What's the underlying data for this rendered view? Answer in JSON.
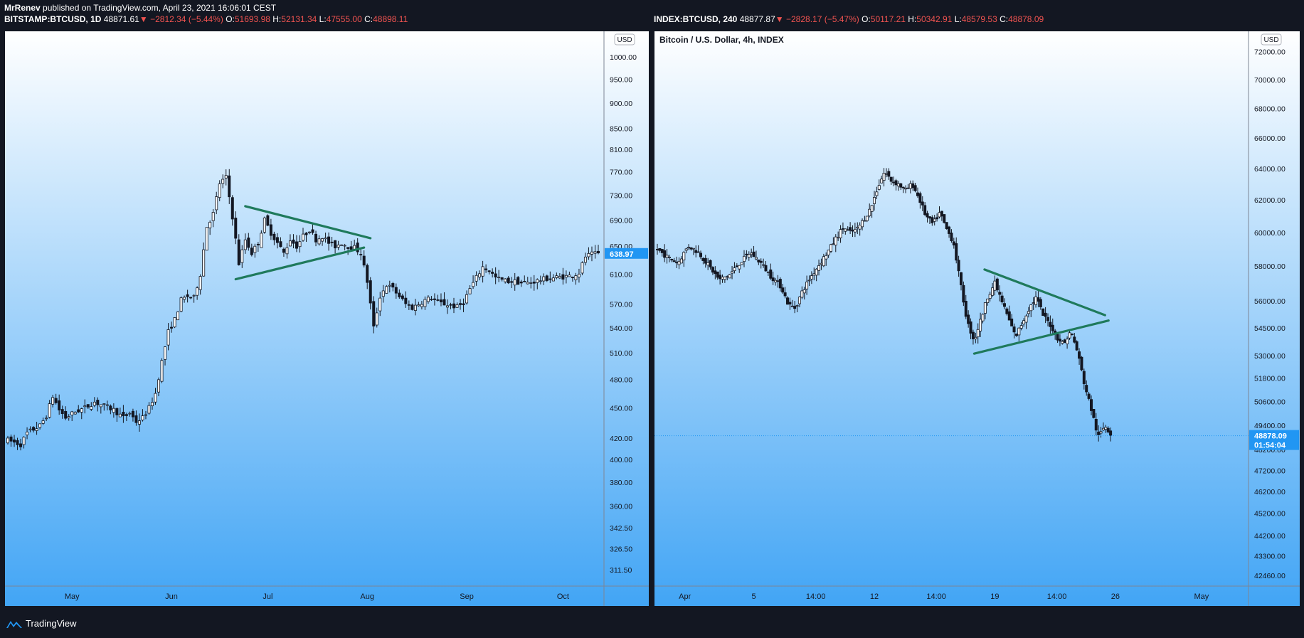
{
  "header": {
    "author": "MrRenev",
    "published_text": "published on TradingView.com, April 23, 2021 16:06:01 CEST"
  },
  "left_legend": {
    "symbol": "BITSTAMP:BTCUSD, 1D",
    "last": "48871.61",
    "arrow": "▼",
    "change": "−2812.34 (−5.44%)",
    "o_label": "O:",
    "o": "51693.98",
    "h_label": "H:",
    "h": "52131.34",
    "l_label": "L:",
    "l": "47555.00",
    "c_label": "C:",
    "c": "48898.11"
  },
  "right_legend": {
    "symbol": "INDEX:BTCUSD, 240",
    "last": "48877.87",
    "arrow": "▼",
    "change": "−2828.17 (−5.47%)",
    "o_label": "O:",
    "o": "50117.21",
    "h_label": "H:",
    "h": "50342.91",
    "l_label": "L:",
    "l": "48579.53",
    "c_label": "C:",
    "c": "48878.09"
  },
  "footer": {
    "brand": "TradingView"
  },
  "colors": {
    "background": "#131722",
    "gradient_top": "#ffffff",
    "gradient_bottom": "#42a5f5",
    "candle": "#131722",
    "trendline": "#1f7a5c",
    "price_label_bg": "#2196f3",
    "change_red": "#ef5350"
  },
  "chart_data": [
    {
      "type": "candlestick",
      "title": "",
      "currency_badge": "USD",
      "y_scale": "log",
      "ylim": [
        300,
        1060
      ],
      "y_ticks": [
        {
          "value": 1000,
          "label": "1000.00"
        },
        {
          "value": 950,
          "label": "950.00"
        },
        {
          "value": 900,
          "label": "900.00"
        },
        {
          "value": 850,
          "label": "850.00"
        },
        {
          "value": 810,
          "label": "810.00"
        },
        {
          "value": 770,
          "label": "770.00"
        },
        {
          "value": 730,
          "label": "730.00"
        },
        {
          "value": 690,
          "label": "690.00"
        },
        {
          "value": 650,
          "label": "650.00"
        },
        {
          "value": 610,
          "label": "610.00"
        },
        {
          "value": 570,
          "label": "570.00"
        },
        {
          "value": 540,
          "label": "540.00"
        },
        {
          "value": 510,
          "label": "510.00"
        },
        {
          "value": 480,
          "label": "480.00"
        },
        {
          "value": 450,
          "label": "450.00"
        },
        {
          "value": 420,
          "label": "420.00"
        },
        {
          "value": 400,
          "label": "400.00"
        },
        {
          "value": 380,
          "label": "380.00"
        },
        {
          "value": 360,
          "label": "360.00"
        },
        {
          "value": 342.5,
          "label": "342.50"
        },
        {
          "value": 326.5,
          "label": "326.50"
        },
        {
          "value": 311.5,
          "label": "311.50"
        }
      ],
      "x_domain": [
        0,
        184
      ],
      "x_ticks": [
        {
          "x": 20,
          "label": "May"
        },
        {
          "x": 51,
          "label": "Jun"
        },
        {
          "x": 81,
          "label": "Jul"
        },
        {
          "x": 112,
          "label": "Aug"
        },
        {
          "x": 143,
          "label": "Sep"
        },
        {
          "x": 173,
          "label": "Oct"
        }
      ],
      "last_price": {
        "value": 638.97,
        "label": "638.97"
      },
      "path": [
        [
          0,
          418
        ],
        [
          4,
          414
        ],
        [
          6,
          425
        ],
        [
          10,
          432
        ],
        [
          12,
          442
        ],
        [
          14,
          462
        ],
        [
          16,
          448
        ],
        [
          18,
          440
        ],
        [
          21,
          446
        ],
        [
          24,
          450
        ],
        [
          27,
          456
        ],
        [
          30,
          452
        ],
        [
          33,
          448
        ],
        [
          36,
          440
        ],
        [
          38,
          445
        ],
        [
          40,
          436
        ],
        [
          42,
          440
        ],
        [
          44,
          450
        ],
        [
          46,
          465
        ],
        [
          48,
          500
        ],
        [
          50,
          535
        ],
        [
          52,
          550
        ],
        [
          54,
          575
        ],
        [
          56,
          580
        ],
        [
          58,
          578
        ],
        [
          60,
          610
        ],
        [
          62,
          680
        ],
        [
          64,
          700
        ],
        [
          66,
          750
        ],
        [
          68,
          760
        ],
        [
          70,
          695
        ],
        [
          72,
          625
        ],
        [
          74,
          660
        ],
        [
          76,
          640
        ],
        [
          78,
          655
        ],
        [
          80,
          690
        ],
        [
          82,
          670
        ],
        [
          84,
          655
        ],
        [
          86,
          640
        ],
        [
          88,
          660
        ],
        [
          90,
          650
        ],
        [
          92,
          665
        ],
        [
          94,
          675
        ],
        [
          96,
          660
        ],
        [
          98,
          665
        ],
        [
          100,
          655
        ],
        [
          102,
          650
        ],
        [
          104,
          655
        ],
        [
          106,
          650
        ],
        [
          108,
          648
        ],
        [
          110,
          640
        ],
        [
          112,
          600
        ],
        [
          114,
          540
        ],
        [
          116,
          580
        ],
        [
          118,
          595
        ],
        [
          120,
          590
        ],
        [
          122,
          580
        ],
        [
          124,
          570
        ],
        [
          126,
          565
        ],
        [
          128,
          570
        ],
        [
          130,
          575
        ],
        [
          132,
          578
        ],
        [
          134,
          572
        ],
        [
          136,
          570
        ],
        [
          138,
          568
        ],
        [
          140,
          566
        ],
        [
          142,
          572
        ],
        [
          144,
          590
        ],
        [
          146,
          605
        ],
        [
          148,
          620
        ],
        [
          150,
          615
        ],
        [
          152,
          605
        ],
        [
          154,
          602
        ],
        [
          156,
          600
        ],
        [
          158,
          600
        ],
        [
          160,
          598
        ],
        [
          162,
          598
        ],
        [
          164,
          600
        ],
        [
          166,
          602
        ],
        [
          168,
          604
        ],
        [
          170,
          605
        ],
        [
          172,
          606
        ],
        [
          174,
          607
        ],
        [
          176,
          608
        ],
        [
          178,
          612
        ],
        [
          180,
          635
        ],
        [
          182,
          638
        ],
        [
          184,
          639
        ]
      ],
      "trendlines": [
        {
          "x1": 74,
          "y1": 712,
          "x2": 113,
          "y2": 662
        },
        {
          "x1": 71,
          "y1": 603,
          "x2": 111,
          "y2": 648
        }
      ]
    },
    {
      "type": "candlestick",
      "title": "Bitcoin / U.S. Dollar, 4h, INDEX",
      "currency_badge": "USD",
      "y_scale": "log",
      "ylim": [
        42000,
        73500
      ],
      "y_ticks": [
        {
          "value": 72000,
          "label": "72000.00"
        },
        {
          "value": 70000,
          "label": "70000.00"
        },
        {
          "value": 68000,
          "label": "68000.00"
        },
        {
          "value": 66000,
          "label": "66000.00"
        },
        {
          "value": 64000,
          "label": "64000.00"
        },
        {
          "value": 62000,
          "label": "62000.00"
        },
        {
          "value": 60000,
          "label": "60000.00"
        },
        {
          "value": 58000,
          "label": "58000.00"
        },
        {
          "value": 56000,
          "label": "56000.00"
        },
        {
          "value": 54500,
          "label": "54500.00"
        },
        {
          "value": 53000,
          "label": "53000.00"
        },
        {
          "value": 51800,
          "label": "51800.00"
        },
        {
          "value": 50600,
          "label": "50600.00"
        },
        {
          "value": 49400,
          "label": "49400.00"
        },
        {
          "value": 48200,
          "label": "48200.00"
        },
        {
          "value": 47200,
          "label": "47200.00"
        },
        {
          "value": 46200,
          "label": "46200.00"
        },
        {
          "value": 45200,
          "label": "45200.00"
        },
        {
          "value": 44200,
          "label": "44200.00"
        },
        {
          "value": 43300,
          "label": "43300.00"
        },
        {
          "value": 42460,
          "label": "42460.00"
        }
      ],
      "x_domain": [
        0,
        170
      ],
      "x_ticks": [
        {
          "x": 8,
          "label": "Apr"
        },
        {
          "x": 28,
          "label": "5"
        },
        {
          "x": 46,
          "label": "14:00"
        },
        {
          "x": 63,
          "label": "12"
        },
        {
          "x": 81,
          "label": "14:00"
        },
        {
          "x": 98,
          "label": "19"
        },
        {
          "x": 116,
          "label": "14:00"
        },
        {
          "x": 133,
          "label": "26"
        },
        {
          "x": 158,
          "label": "May"
        }
      ],
      "last_price": {
        "value": 48878.09,
        "label": "48878.09",
        "countdown": "01:54:04"
      },
      "path": [
        [
          0,
          59000
        ],
        [
          3,
          58500
        ],
        [
          6,
          58200
        ],
        [
          9,
          59200
        ],
        [
          12,
          58800
        ],
        [
          15,
          58000
        ],
        [
          18,
          57200
        ],
        [
          21,
          57500
        ],
        [
          24,
          58200
        ],
        [
          27,
          58800
        ],
        [
          30,
          58200
        ],
        [
          33,
          57400
        ],
        [
          36,
          56800
        ],
        [
          38,
          55800
        ],
        [
          40,
          55600
        ],
        [
          42,
          56500
        ],
        [
          44,
          57200
        ],
        [
          46,
          57800
        ],
        [
          48,
          58400
        ],
        [
          50,
          59000
        ],
        [
          52,
          59700
        ],
        [
          54,
          60300
        ],
        [
          56,
          60000
        ],
        [
          58,
          60200
        ],
        [
          60,
          60800
        ],
        [
          62,
          61500
        ],
        [
          64,
          62800
        ],
        [
          66,
          63800
        ],
        [
          68,
          63200
        ],
        [
          70,
          63000
        ],
        [
          72,
          62600
        ],
        [
          74,
          63000
        ],
        [
          76,
          62100
        ],
        [
          78,
          61000
        ],
        [
          80,
          60500
        ],
        [
          82,
          61200
        ],
        [
          84,
          60200
        ],
        [
          86,
          59400
        ],
        [
          88,
          57000
        ],
        [
          90,
          54800
        ],
        [
          92,
          53800
        ],
        [
          94,
          55000
        ],
        [
          96,
          56300
        ],
        [
          98,
          57000
        ],
        [
          100,
          56000
        ],
        [
          102,
          55000
        ],
        [
          104,
          54000
        ],
        [
          106,
          54800
        ],
        [
          108,
          55600
        ],
        [
          110,
          56200
        ],
        [
          112,
          55200
        ],
        [
          114,
          54700
        ],
        [
          116,
          54000
        ],
        [
          118,
          53600
        ],
        [
          120,
          54300
        ],
        [
          122,
          53200
        ],
        [
          124,
          51500
        ],
        [
          126,
          50200
        ],
        [
          128,
          48800
        ],
        [
          130,
          49400
        ],
        [
          132,
          48878
        ]
      ],
      "trendlines": [
        {
          "x1": 95,
          "y1": 57800,
          "x2": 130,
          "y2": 55200
        },
        {
          "x1": 92,
          "y1": 53100,
          "x2": 131,
          "y2": 54900
        }
      ]
    }
  ]
}
